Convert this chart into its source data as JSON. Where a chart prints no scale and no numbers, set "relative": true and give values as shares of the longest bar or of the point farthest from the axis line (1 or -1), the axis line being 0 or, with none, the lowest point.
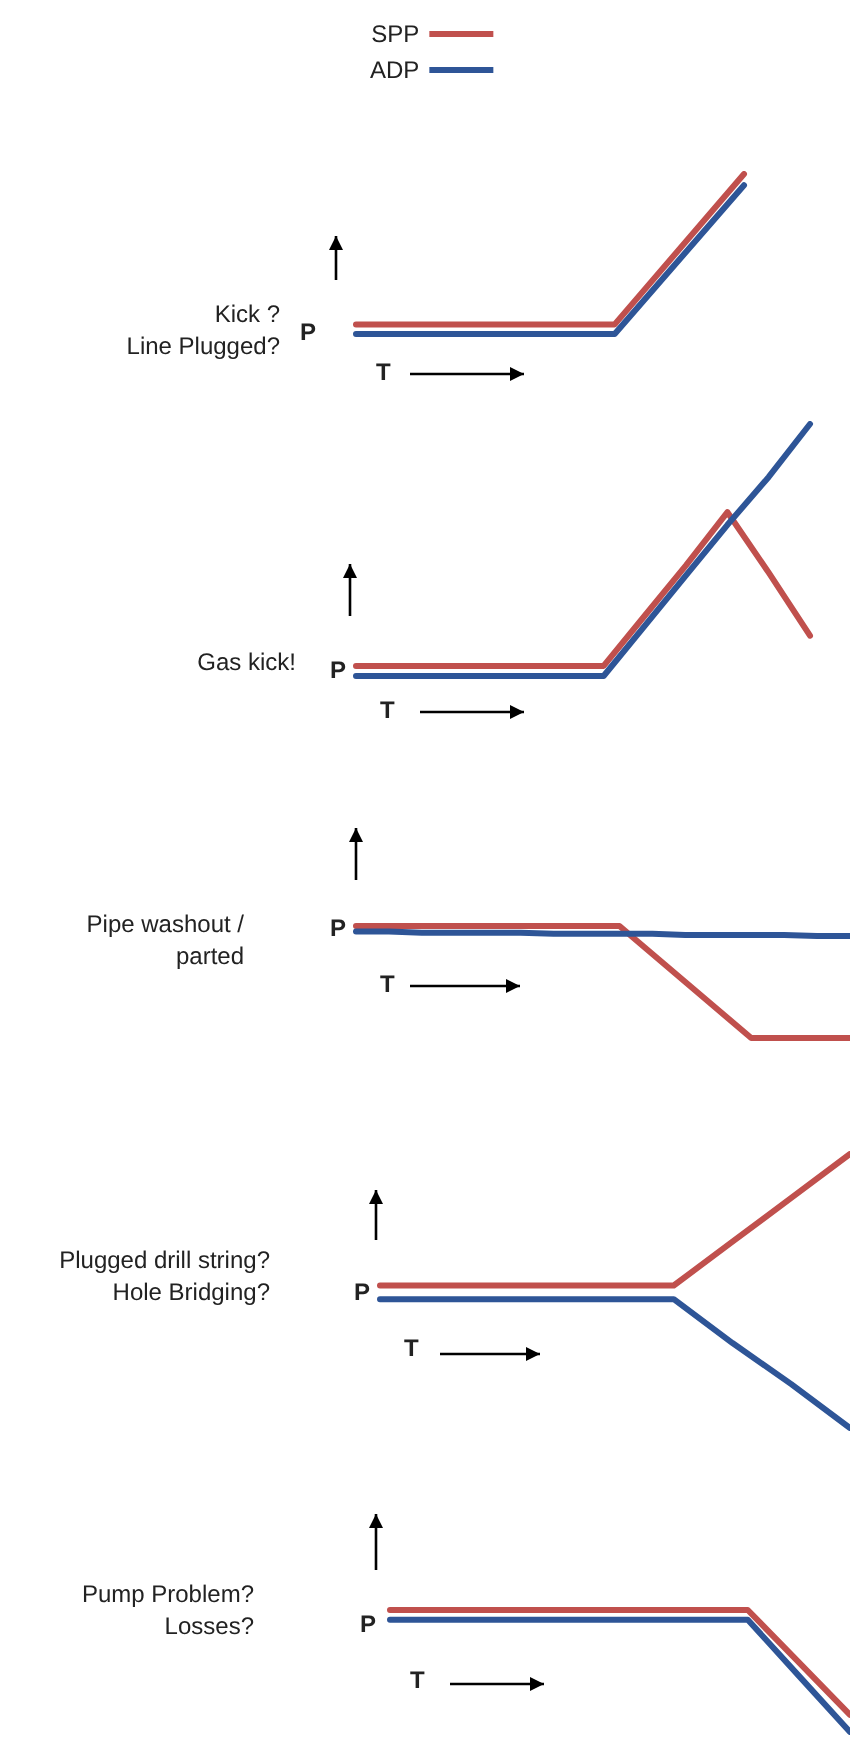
{
  "chart_data": [
    {
      "type": "line",
      "title": "Kick ?\nLine Plugged?",
      "xlabel": "T",
      "ylabel": "P",
      "relative": true,
      "legend": "top",
      "categories": [
        null,
        null,
        null,
        null
      ],
      "series": [
        {
          "name": "SPP",
          "color": "#c0504d",
          "values": [
            0.06,
            0.06,
            0.06,
            1
          ]
        },
        {
          "name": "ADP",
          "color": "#2e5597",
          "values": [
            0,
            0,
            0,
            0.93
          ]
        }
      ]
    },
    {
      "type": "line",
      "title": "Gas kick!",
      "xlabel": "T",
      "ylabel": "P",
      "relative": true,
      "categories": [
        null,
        null,
        null,
        null,
        null,
        null,
        null,
        null,
        null,
        null,
        null,
        null
      ],
      "series": [
        {
          "color": "#c0504d",
          "values": [
            0.04,
            0.04,
            0.04,
            0.04,
            0.04,
            0.04,
            0.04,
            0.24,
            0.44,
            0.65,
            0.41,
            0.16
          ]
        },
        {
          "color": "#2e5597",
          "values": [
            0,
            0,
            0,
            0,
            0,
            0,
            0,
            0.2,
            0.4,
            0.6,
            0.79,
            1
          ]
        }
      ]
    },
    {
      "type": "line",
      "title": "Pipe washout /\nparted",
      "xlabel": "T",
      "ylabel": "P",
      "relative": true,
      "categories": [
        null,
        null,
        null,
        null,
        null,
        null,
        null,
        null,
        null,
        null,
        null,
        null,
        null,
        null,
        null,
        null
      ],
      "series": [
        {
          "color": "#c0504d",
          "values": [
            1,
            1,
            1,
            1,
            1,
            1,
            1,
            1,
            1,
            0.75,
            0.5,
            0.25,
            0,
            0,
            0,
            0
          ]
        },
        {
          "color": "#2e5597",
          "values": [
            0.95,
            0.95,
            0.94,
            0.94,
            0.94,
            0.94,
            0.93,
            0.93,
            0.93,
            0.93,
            0.92,
            0.92,
            0.92,
            0.92,
            0.91,
            0.91
          ]
        }
      ]
    },
    {
      "type": "line",
      "title": "Plugged drill string?\nHole Bridging?",
      "xlabel": "T",
      "ylabel": "P",
      "relative": true,
      "categories": [
        null,
        null,
        null,
        null,
        null,
        null,
        null,
        null,
        null
      ],
      "series": [
        {
          "color": "#c0504d",
          "values": [
            0.52,
            0.52,
            0.52,
            0.52,
            0.52,
            0.52,
            0.68,
            0.84,
            1
          ]
        },
        {
          "color": "#2e5597",
          "values": [
            0.47,
            0.47,
            0.47,
            0.47,
            0.47,
            0.47,
            0.31,
            0.16,
            0
          ]
        }
      ]
    },
    {
      "type": "line",
      "title": "Pump Problem?\nLosses?",
      "xlabel": "T",
      "ylabel": "P",
      "relative": true,
      "categories": [
        null,
        null,
        null,
        null,
        null,
        null,
        null,
        null,
        null,
        null
      ],
      "series": [
        {
          "color": "#c0504d",
          "values": [
            1,
            1,
            1,
            1,
            1,
            1,
            1,
            1,
            0.57,
            0.14
          ]
        },
        {
          "color": "#2e5597",
          "values": [
            0.92,
            0.92,
            0.92,
            0.92,
            0.92,
            0.92,
            0.92,
            0.92,
            0.46,
            0
          ]
        }
      ]
    }
  ]
}
